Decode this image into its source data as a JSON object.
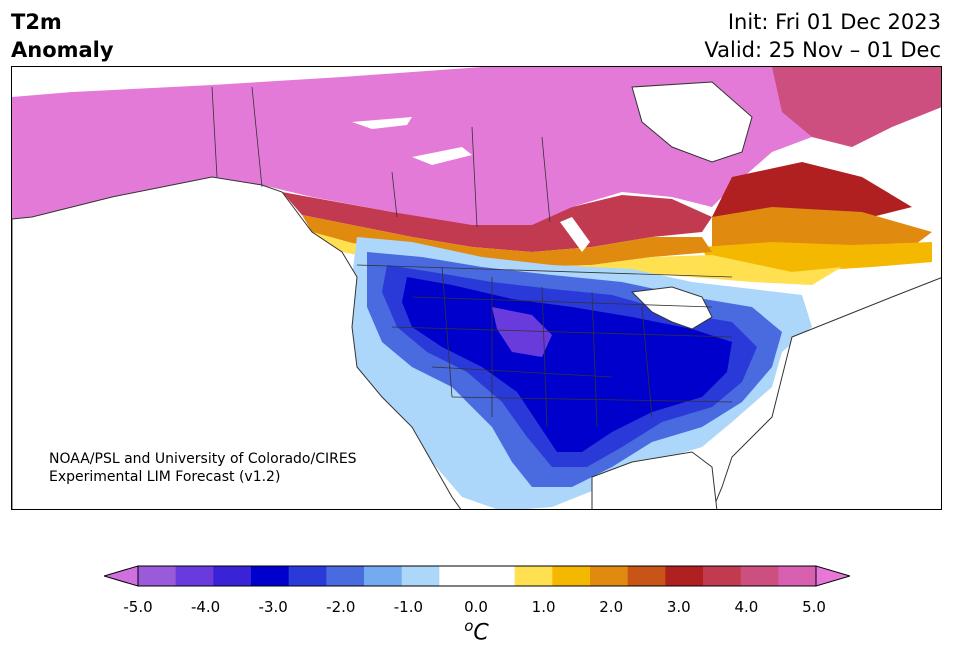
{
  "header": {
    "title_line1": "T2m",
    "title_line2": "Anomaly",
    "init_label": "Init: Fri 01 Dec 2023",
    "valid_label": "Valid: 25 Nov – 01 Dec"
  },
  "credit": {
    "line1": "NOAA/PSL and University of Colorado/CIRES",
    "line2": "Experimental LIM Forecast (v1.2)"
  },
  "colorbar": {
    "tick_labels": [
      "-5.0",
      "-4.0",
      "-3.0",
      "-2.0",
      "-1.0",
      "0.0",
      "1.0",
      "2.0",
      "3.0",
      "4.0",
      "5.0"
    ],
    "unit_base": "o",
    "unit_letter": "C",
    "colors": [
      "#9b5ad9",
      "#6a3bdc",
      "#3a22d6",
      "#0000cc",
      "#2a3ad8",
      "#4a6ae0",
      "#74aaf0",
      "#acd6fa",
      "#ffffff",
      "#ffffff",
      "#ffe050",
      "#f5b800",
      "#e08a10",
      "#c85518",
      "#b02020",
      "#c23a50",
      "#cc4f80",
      "#d860b0"
    ],
    "low_extend_color": "#d070e0",
    "high_extend_color": "#e878d8"
  },
  "map": {
    "land_color": "#ffffff",
    "border_color": "#333333"
  }
}
